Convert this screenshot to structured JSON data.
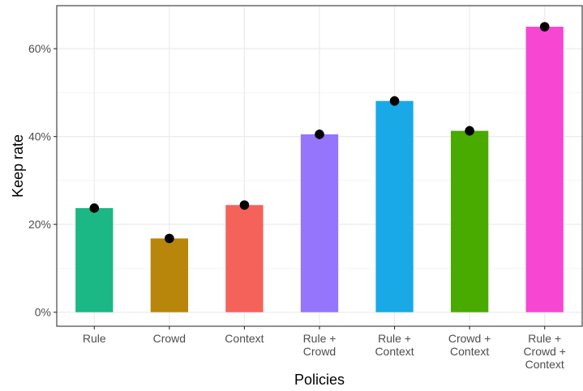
{
  "chart_data": {
    "type": "bar",
    "title": "",
    "xlabel": "Policies",
    "ylabel": "Keep rate",
    "categories": [
      "Rule",
      "Crowd",
      "Context",
      "Rule + Crowd",
      "Rule + Context",
      "Crowd + Context",
      "Rule + Crowd + Context"
    ],
    "category_label_lines": [
      [
        "Rule"
      ],
      [
        "Crowd"
      ],
      [
        "Context"
      ],
      [
        "Rule +",
        "Crowd"
      ],
      [
        "Rule +",
        "Context"
      ],
      [
        "Crowd +",
        "Context"
      ],
      [
        "Rule +",
        "Crowd +",
        "Context"
      ]
    ],
    "values": [
      23.7,
      16.8,
      24.4,
      40.5,
      48.1,
      41.3,
      65.0
    ],
    "error_low": [
      23.2,
      16.3,
      23.6,
      39.4,
      47.0,
      40.2,
      64.0
    ],
    "error_high": [
      24.2,
      17.3,
      25.2,
      41.6,
      49.2,
      42.4,
      66.0
    ],
    "colors": [
      "#1bb785",
      "#b8860b",
      "#f4625a",
      "#9575fb",
      "#19a9e6",
      "#49aa00",
      "#f746d2"
    ],
    "ylim": [
      -3.2,
      69.8
    ],
    "yticks": [
      0,
      20,
      40,
      60
    ],
    "ytick_labels": [
      "0%",
      "20%",
      "40%",
      "60%"
    ],
    "grid": true,
    "legend": "none"
  }
}
